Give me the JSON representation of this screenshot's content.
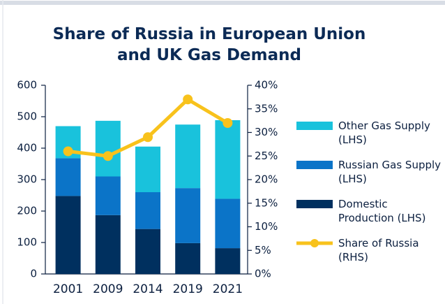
{
  "chart_data": {
    "type": "bar",
    "title": "Share of Russia in European Union and UK Gas Demand",
    "categories": [
      "2001",
      "2009",
      "2014",
      "2019",
      "2021"
    ],
    "series": [
      {
        "name": "Domestic Production (LHS)",
        "color": "#00305f",
        "values": [
          248,
          187,
          143,
          98,
          82
        ]
      },
      {
        "name": "Russian Gas Supply (LHS)",
        "color": "#0b74c8",
        "values": [
          120,
          123,
          117,
          175,
          157
        ]
      },
      {
        "name": "Other Gas Supply (LHS)",
        "color": "#19c2dc",
        "values": [
          102,
          177,
          145,
          202,
          250
        ]
      },
      {
        "name": "Share of Russia (RHS)",
        "color": "#f8c21c",
        "type": "line",
        "axis": "y2",
        "values": [
          26,
          25,
          29,
          37,
          32
        ]
      }
    ],
    "ylim": [
      0,
      600
    ],
    "yticks": [
      0,
      100,
      200,
      300,
      400,
      500,
      600
    ],
    "y2lim": [
      0,
      40
    ],
    "y2ticks": [
      {
        "value": 0,
        "label": "0%"
      },
      {
        "value": 5,
        "label": "5%"
      },
      {
        "value": 10,
        "label": "10%"
      },
      {
        "value": 15,
        "label": "15%"
      },
      {
        "value": 20,
        "label": "20%"
      },
      {
        "value": 25,
        "label": "25%"
      },
      {
        "value": 30,
        "label": "30%"
      },
      {
        "value": 35,
        "label": "35%"
      },
      {
        "value": 40,
        "label": "40%"
      }
    ],
    "stacked": true,
    "legend": "right"
  }
}
